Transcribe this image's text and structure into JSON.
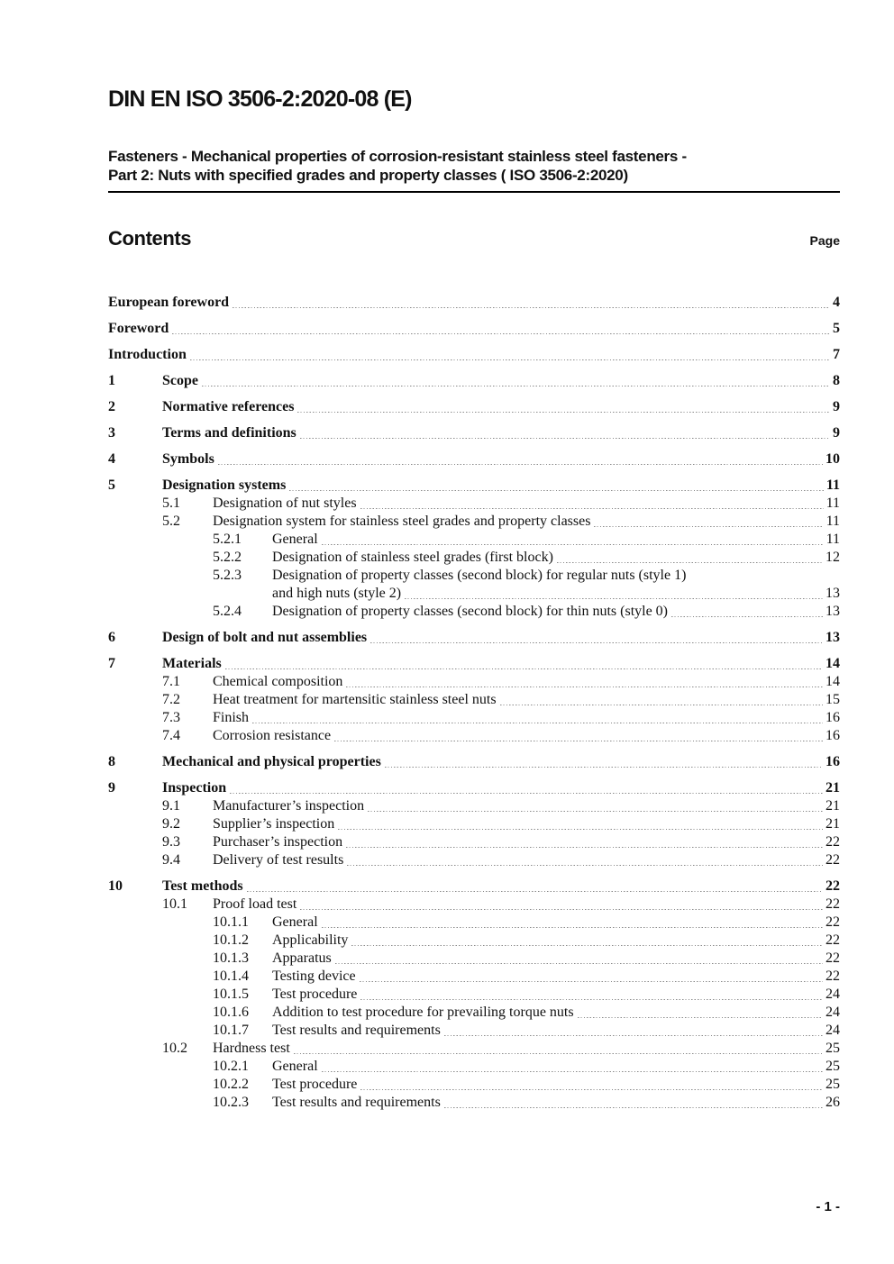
{
  "header": {
    "doc_code": "DIN EN ISO 3506-2:2020-08 (E)",
    "subtitle_line1": "Fasteners - Mechanical properties of corrosion-resistant stainless steel fasteners -",
    "subtitle_line2": "Part 2: Nuts with specified grades and property classes ( ISO 3506-2:2020)",
    "contents_heading": "Contents",
    "page_column_label": "Page"
  },
  "footer": {
    "page_number": "- 1 -"
  },
  "colors": {
    "text": "#111111",
    "leader_dots": "#8a8a8a",
    "rule": "#000000",
    "background": "#ffffff"
  },
  "toc": {
    "entries": [
      {
        "num": "",
        "title": "European foreword",
        "page": "4",
        "level": 1,
        "bold": true
      },
      {
        "num": "",
        "title": "Foreword",
        "page": "5",
        "level": 1,
        "bold": true
      },
      {
        "num": "",
        "title": "Introduction",
        "page": "7",
        "level": 1,
        "bold": true
      },
      {
        "num": "1",
        "title": "Scope",
        "page": "8",
        "level": 1,
        "bold": true
      },
      {
        "num": "2",
        "title": "Normative references",
        "page": "9",
        "level": 1,
        "bold": true
      },
      {
        "num": "3",
        "title": "Terms and definitions",
        "page": "9",
        "level": 1,
        "bold": true
      },
      {
        "num": "4",
        "title": "Symbols",
        "page": "10",
        "level": 1,
        "bold": true
      },
      {
        "num": "5",
        "title": "Designation systems",
        "page": "11",
        "level": 1,
        "bold": true
      },
      {
        "num": "5.1",
        "title": "Designation of nut styles",
        "page": "11",
        "level": 2,
        "bold": false
      },
      {
        "num": "5.2",
        "title": "Designation system for stainless steel grades and property classes",
        "page": "11",
        "level": 2,
        "bold": false
      },
      {
        "num": "5.2.1",
        "title": "General",
        "page": "11",
        "level": 3,
        "bold": false
      },
      {
        "num": "5.2.2",
        "title": "Designation of stainless steel grades (first block)",
        "page": "12",
        "level": 3,
        "bold": false
      },
      {
        "num": "5.2.3",
        "title": "Designation of property classes (second block) for regular nuts (style 1)",
        "title2": "and high nuts (style 2)",
        "page": "13",
        "level": 3,
        "bold": false
      },
      {
        "num": "5.2.4",
        "title": "Designation of property classes (second block) for thin nuts (style 0)",
        "page": "13",
        "level": 3,
        "bold": false
      },
      {
        "num": "6",
        "title": "Design of bolt and nut assemblies",
        "page": "13",
        "level": 1,
        "bold": true
      },
      {
        "num": "7",
        "title": "Materials",
        "page": "14",
        "level": 1,
        "bold": true
      },
      {
        "num": "7.1",
        "title": "Chemical composition",
        "page": "14",
        "level": 2,
        "bold": false
      },
      {
        "num": "7.2",
        "title": "Heat treatment for martensitic stainless steel nuts",
        "page": "15",
        "level": 2,
        "bold": false
      },
      {
        "num": "7.3",
        "title": "Finish",
        "page": "16",
        "level": 2,
        "bold": false
      },
      {
        "num": "7.4",
        "title": "Corrosion resistance",
        "page": "16",
        "level": 2,
        "bold": false
      },
      {
        "num": "8",
        "title": "Mechanical and physical properties",
        "page": "16",
        "level": 1,
        "bold": true
      },
      {
        "num": "9",
        "title": "Inspection",
        "page": "21",
        "level": 1,
        "bold": true
      },
      {
        "num": "9.1",
        "title": "Manufacturer’s inspection",
        "page": "21",
        "level": 2,
        "bold": false
      },
      {
        "num": "9.2",
        "title": "Supplier’s inspection",
        "page": "21",
        "level": 2,
        "bold": false
      },
      {
        "num": "9.3",
        "title": "Purchaser’s inspection",
        "page": "22",
        "level": 2,
        "bold": false
      },
      {
        "num": "9.4",
        "title": "Delivery of test results",
        "page": "22",
        "level": 2,
        "bold": false
      },
      {
        "num": "10",
        "title": "Test methods",
        "page": "22",
        "level": 1,
        "bold": true
      },
      {
        "num": "10.1",
        "title": "Proof load test",
        "page": "22",
        "level": 2,
        "bold": false
      },
      {
        "num": "10.1.1",
        "title": "General",
        "page": "22",
        "level": 3,
        "bold": false
      },
      {
        "num": "10.1.2",
        "title": "Applicability",
        "page": "22",
        "level": 3,
        "bold": false
      },
      {
        "num": "10.1.3",
        "title": "Apparatus",
        "page": "22",
        "level": 3,
        "bold": false
      },
      {
        "num": "10.1.4",
        "title": "Testing device",
        "page": "22",
        "level": 3,
        "bold": false
      },
      {
        "num": "10.1.5",
        "title": "Test procedure",
        "page": "24",
        "level": 3,
        "bold": false
      },
      {
        "num": "10.1.6",
        "title": "Addition to test procedure for prevailing torque nuts",
        "page": "24",
        "level": 3,
        "bold": false
      },
      {
        "num": "10.1.7",
        "title": "Test results and requirements",
        "page": "24",
        "level": 3,
        "bold": false
      },
      {
        "num": "10.2",
        "title": "Hardness test",
        "page": "25",
        "level": 2,
        "bold": false
      },
      {
        "num": "10.2.1",
        "title": "General",
        "page": "25",
        "level": 3,
        "bold": false
      },
      {
        "num": "10.2.2",
        "title": "Test procedure",
        "page": "25",
        "level": 3,
        "bold": false
      },
      {
        "num": "10.2.3",
        "title": "Test results and requirements",
        "page": "26",
        "level": 3,
        "bold": false
      }
    ]
  }
}
